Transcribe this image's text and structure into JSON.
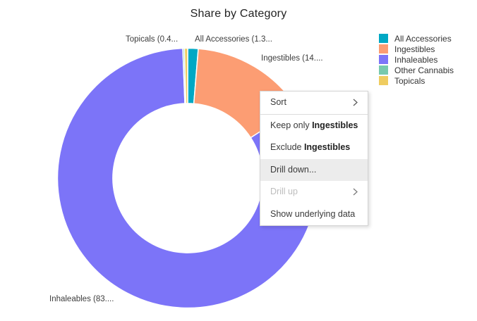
{
  "title": "Share by Category",
  "chart_data": {
    "type": "pie",
    "subtype": "donut",
    "title": "Share by Category",
    "categories": [
      "All Accessories",
      "Ingestibles",
      "Inhaleables",
      "Other Cannabis",
      "Topicals"
    ],
    "values": [
      1.3,
      14.6,
      83.5,
      0.2,
      0.4
    ],
    "unit": "percent_of_total",
    "colors": [
      "#00A8C4",
      "#FC9D73",
      "#7C74F8",
      "#77C9AD",
      "#EFCC60"
    ],
    "start_angle_deg": 0,
    "clockwise": true,
    "inner_radius_ratio": 0.575,
    "legend_position": "right"
  },
  "slice_labels": {
    "topicals": "Topicals (0.4...",
    "all_accessories": "All Accessories (1.3...",
    "ingestibles": "Ingestibles (14....",
    "inhaleables": "Inhaleables (83...."
  },
  "legend": {
    "items": [
      {
        "label": "All Accessories",
        "color": "#00A8C4"
      },
      {
        "label": "Ingestibles",
        "color": "#FC9D73"
      },
      {
        "label": "Inhaleables",
        "color": "#7C74F8"
      },
      {
        "label": "Other Cannabis",
        "color": "#77C9AD"
      },
      {
        "label": "Topicals",
        "color": "#EFCC60"
      }
    ]
  },
  "context_menu": {
    "sort": {
      "label": "Sort"
    },
    "keep_only": {
      "prefix": "Keep only ",
      "value": "Ingestibles"
    },
    "exclude": {
      "prefix": "Exclude ",
      "value": "Ingestibles"
    },
    "drill_down": {
      "label": "Drill down..."
    },
    "drill_up": {
      "label": "Drill up"
    },
    "show_underlying": {
      "label": "Show underlying data"
    }
  }
}
